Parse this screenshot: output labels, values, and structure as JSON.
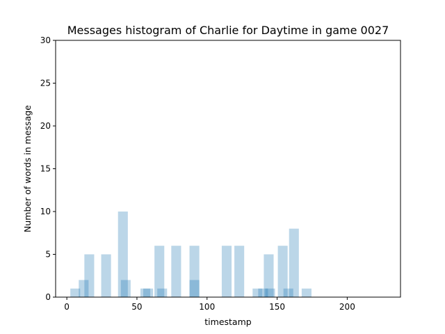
{
  "chart_data": {
    "type": "bar",
    "title": "Messages histogram of Charlie for Daytime in game 0027",
    "xlabel": "timestamp",
    "ylabel": "Number of words in message",
    "xlim": [
      -8,
      238
    ],
    "ylim": [
      0,
      30
    ],
    "xticks": [
      0,
      50,
      100,
      150,
      200
    ],
    "yticks": [
      0,
      5,
      10,
      15,
      20,
      25,
      30
    ],
    "grid": false,
    "bar_width": 7,
    "bars": [
      {
        "x": 6,
        "value": 1
      },
      {
        "x": 12,
        "value": 2
      },
      {
        "x": 16,
        "value": 5
      },
      {
        "x": 28,
        "value": 5
      },
      {
        "x": 40,
        "value": 10
      },
      {
        "x": 42,
        "value": 2
      },
      {
        "x": 56,
        "value": 1
      },
      {
        "x": 58,
        "value": 1
      },
      {
        "x": 66,
        "value": 6
      },
      {
        "x": 68,
        "value": 1
      },
      {
        "x": 78,
        "value": 6
      },
      {
        "x": 91,
        "value": 6
      },
      {
        "x": 91,
        "value": 2
      },
      {
        "x": 114,
        "value": 6
      },
      {
        "x": 123,
        "value": 6
      },
      {
        "x": 136,
        "value": 1
      },
      {
        "x": 140,
        "value": 1
      },
      {
        "x": 144,
        "value": 5
      },
      {
        "x": 145,
        "value": 1
      },
      {
        "x": 154,
        "value": 6
      },
      {
        "x": 158,
        "value": 1
      },
      {
        "x": 162,
        "value": 8
      },
      {
        "x": 171,
        "value": 1
      }
    ]
  }
}
